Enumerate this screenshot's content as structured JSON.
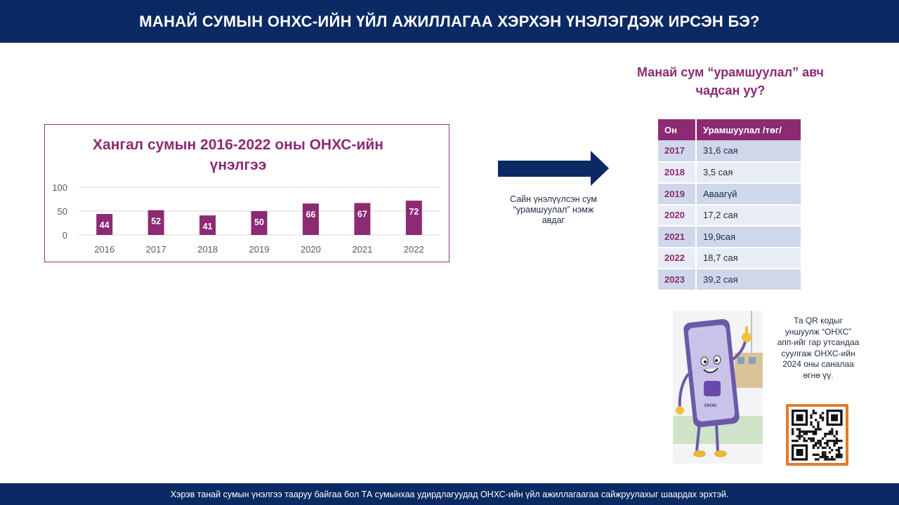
{
  "header": {
    "title": "МАНАЙ СУМЫН ОНХС-ИЙН ҮЙЛ АЖИЛЛАГАА ХЭРХЭН ҮНЭЛЭГДЭЖ ИРСЭН БЭ?"
  },
  "chart_data": {
    "type": "bar",
    "title": "Хангал сумын 2016-2022 оны ОНХС-ийн үнэлгээ",
    "categories": [
      "2016",
      "2017",
      "2018",
      "2019",
      "2020",
      "2021",
      "2022"
    ],
    "values": [
      44,
      52,
      41,
      50,
      66,
      67,
      72
    ],
    "ylim": [
      0,
      100
    ],
    "yticks": [
      "100",
      "50",
      "0"
    ],
    "xlabel": "",
    "ylabel": "",
    "grid": true,
    "data_labels": true,
    "bar_color": "#8c2a73"
  },
  "arrow": {
    "caption": "Сайн үнэлүүлсэн сум “урамшуулал” нэмж авдаг",
    "color": "#0b2a63"
  },
  "reward": {
    "title": "Манай сум “урамшуулал” авч чадсан уу?",
    "headers": [
      "Он",
      "Урамшуулал /төг/"
    ],
    "rows": [
      {
        "year": "2017",
        "amount": "31,6 сая"
      },
      {
        "year": "2018",
        "amount": "3,5 сая"
      },
      {
        "year": "2019",
        "amount": "Аваагүй"
      },
      {
        "year": "2020",
        "amount": "17,2 сая"
      },
      {
        "year": "2021",
        "amount": "19,9сая"
      },
      {
        "year": "2022",
        "amount": "18,7 сая"
      },
      {
        "year": "2023",
        "amount": "39,2 сая"
      }
    ]
  },
  "mascot": {
    "phone_label": "ОНХС"
  },
  "qr": {
    "text": "Та QR кодыг уншуулж “ОНХС” апп-ийг гар утсандаа суулгаж ОНХС-ийн 2024 оны саналаа өгнө үү."
  },
  "footer": {
    "text": "Хэрэв танай сумын үнэлгээ тааруу байгаа бол ТА сумынхаа удирдлагуудад ОНХС-ийн  үйл ажиллагаагаа  сайжруулахыг шаардах эрхтэй."
  },
  "colors": {
    "navy": "#0b2a63",
    "plum": "#8c2a73",
    "row_light": "#e8ecf5",
    "row_dark": "#cfd7ea",
    "qr_border": "#e07b2a"
  }
}
